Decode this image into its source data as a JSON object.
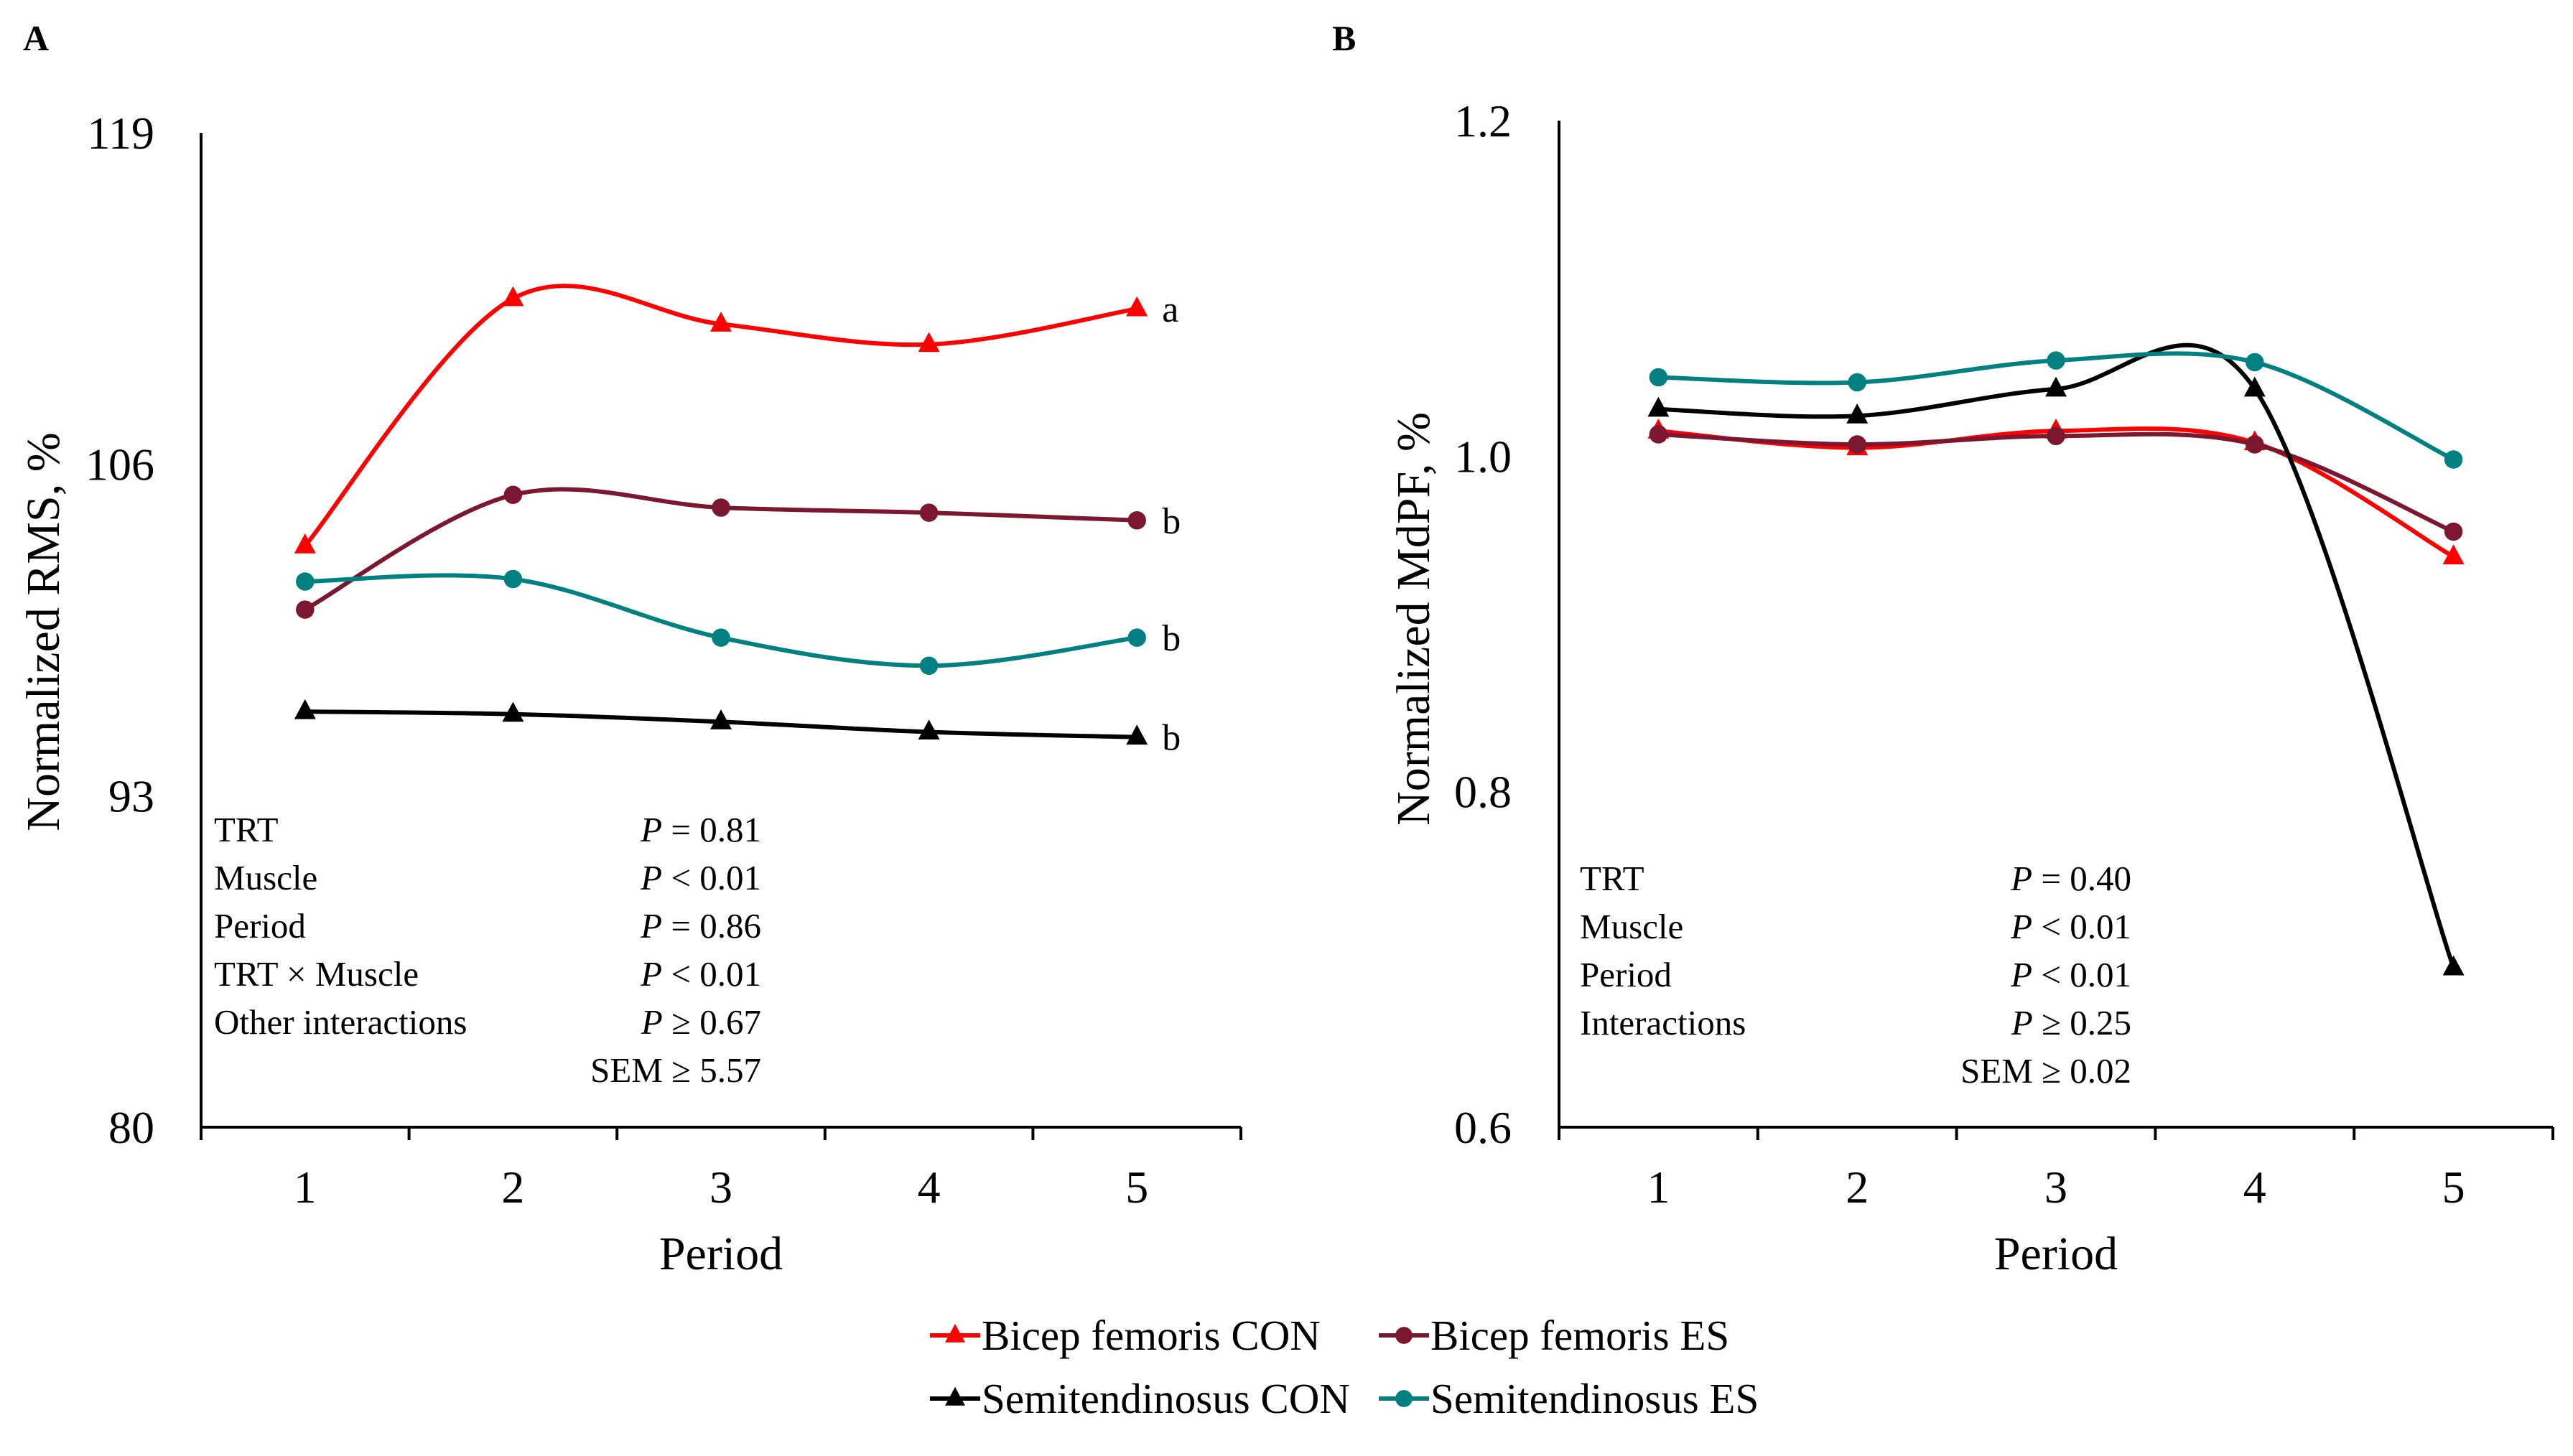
{
  "chart_data": [
    {
      "panel": "A",
      "type": "line",
      "xlabel": "Period",
      "ylabel": "Normalized RMS, %",
      "x": [
        1,
        2,
        3,
        4,
        5
      ],
      "xlim": [
        0.5,
        5.5
      ],
      "ylim": [
        80,
        119
      ],
      "yticks": [
        80,
        93,
        106,
        119
      ],
      "series": [
        {
          "name": "Bicep femoris CON",
          "color": "#ff0000",
          "marker": "triangle",
          "values": [
            102.8,
            112.5,
            111.5,
            110.7,
            112.1
          ],
          "end_label": "a"
        },
        {
          "name": "Bicep femoris ES",
          "color": "#7b1830",
          "marker": "circle",
          "values": [
            100.3,
            104.8,
            104.3,
            104.1,
            103.8
          ],
          "end_label": "b"
        },
        {
          "name": "Semitendinosus CON",
          "color": "#000000",
          "marker": "triangle",
          "values": [
            96.3,
            96.2,
            95.9,
            95.5,
            95.3
          ],
          "end_label": "b"
        },
        {
          "name": "Semitendinosus ES",
          "color": "#008080",
          "marker": "circle",
          "values": [
            101.4,
            101.5,
            99.2,
            98.1,
            99.2
          ],
          "end_label": "b"
        }
      ],
      "stats": [
        {
          "label": "TRT",
          "value": "P = 0.81"
        },
        {
          "label": "Muscle",
          "value": "P < 0.01"
        },
        {
          "label": "Period",
          "value": "P = 0.86"
        },
        {
          "label": "TRT × Muscle",
          "value": "P < 0.01"
        },
        {
          "label": "Other interactions",
          "value": "P ≥ 0.67"
        }
      ],
      "sem": "SEM ≥ 5.57"
    },
    {
      "panel": "B",
      "type": "line",
      "xlabel": "Period",
      "ylabel": "Normalized MdPF, %",
      "x": [
        1,
        2,
        3,
        4,
        5
      ],
      "xlim": [
        0.5,
        5.5
      ],
      "ylim": [
        0.6,
        1.2
      ],
      "yticks": [
        0.6,
        0.8,
        1.0,
        1.2
      ],
      "ytick_labels": [
        "0.6",
        "0.8",
        "1.0",
        "1.2"
      ],
      "series": [
        {
          "name": "Bicep femoris CON",
          "color": "#ff0000",
          "marker": "triangle",
          "values": [
            1.015,
            1.005,
            1.015,
            1.008,
            0.94
          ]
        },
        {
          "name": "Bicep femoris ES",
          "color": "#7b1830",
          "marker": "circle",
          "values": [
            1.013,
            1.007,
            1.012,
            1.007,
            0.955
          ]
        },
        {
          "name": "Semitendinosus CON",
          "color": "#000000",
          "marker": "triangle",
          "values": [
            1.028,
            1.024,
            1.04,
            1.04,
            0.695
          ]
        },
        {
          "name": "Semitendinosus ES",
          "color": "#008080",
          "marker": "circle",
          "values": [
            1.047,
            1.044,
            1.057,
            1.056,
            0.998
          ]
        }
      ],
      "stats": [
        {
          "label": "TRT",
          "value": "P = 0.40"
        },
        {
          "label": "Muscle",
          "value": "P < 0.01"
        },
        {
          "label": "Period",
          "value": "P < 0.01"
        },
        {
          "label": "Interactions",
          "value": "P ≥ 0.25"
        }
      ],
      "sem": "SEM ≥ 0.02"
    }
  ],
  "legend": [
    {
      "name": "Bicep femoris CON",
      "color": "#ff0000",
      "marker": "triangle"
    },
    {
      "name": "Bicep femoris ES",
      "color": "#7b1830",
      "marker": "circle"
    },
    {
      "name": "Semitendinosus CON",
      "color": "#000000",
      "marker": "triangle"
    },
    {
      "name": "Semitendinosus ES",
      "color": "#008080",
      "marker": "circle"
    }
  ]
}
